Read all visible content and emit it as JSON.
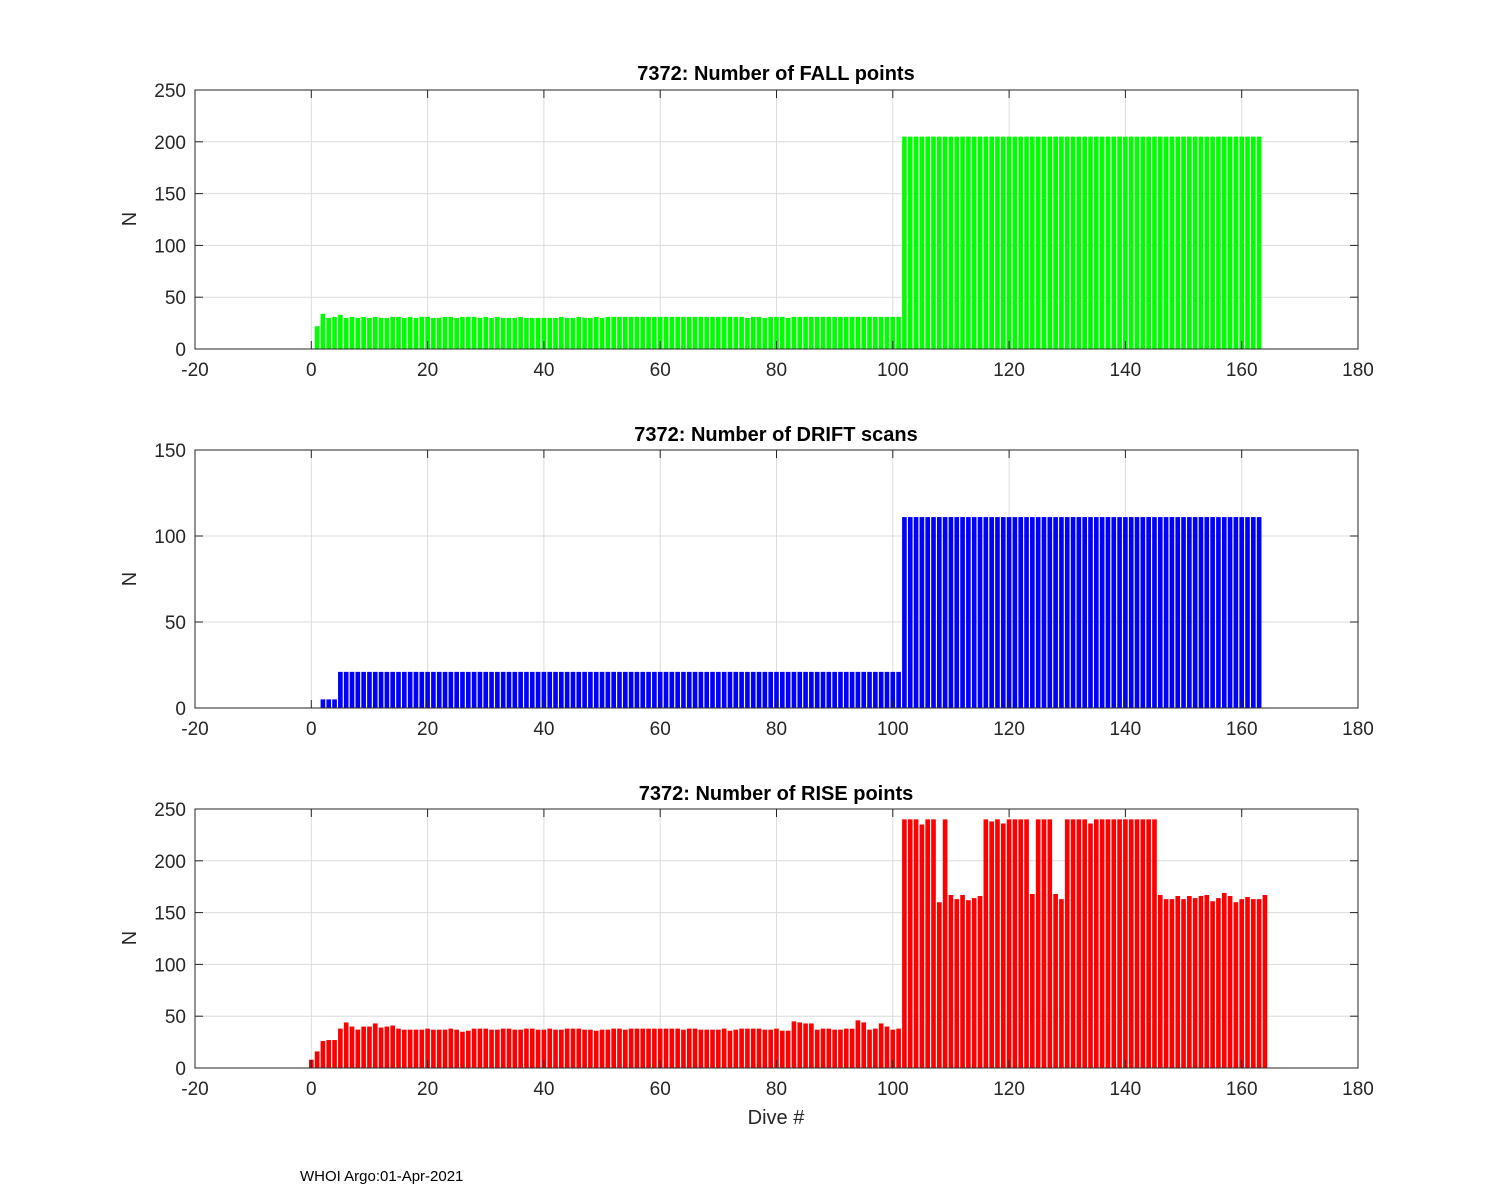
{
  "footer": "WHOI Argo:01-Apr-2021",
  "chart_data": [
    {
      "type": "bar",
      "title": "7372: Number of FALL points",
      "xlabel": "",
      "ylabel": "N",
      "xlim": [
        -20,
        180
      ],
      "ylim": [
        0,
        250
      ],
      "xticks": [
        -20,
        0,
        20,
        40,
        60,
        80,
        100,
        120,
        140,
        160,
        180
      ],
      "yticks": [
        0,
        50,
        100,
        150,
        200,
        250
      ],
      "color": "#00ff00",
      "x_start": 1,
      "values": [
        22,
        34,
        30,
        31,
        33,
        30,
        31,
        30,
        31,
        30,
        31,
        30,
        30,
        31,
        31,
        30,
        31,
        30,
        31,
        31,
        30,
        30,
        31,
        31,
        30,
        31,
        31,
        31,
        30,
        31,
        30,
        31,
        30,
        30,
        30,
        31,
        30,
        30,
        30,
        30,
        30,
        30,
        31,
        30,
        30,
        31,
        30,
        30,
        31,
        30,
        31,
        31,
        31,
        31,
        31,
        31,
        31,
        31,
        31,
        31,
        31,
        31,
        31,
        31,
        31,
        31,
        31,
        31,
        31,
        31,
        31,
        31,
        31,
        31,
        30,
        31,
        31,
        30,
        31,
        31,
        31,
        30,
        31,
        31,
        31,
        31,
        31,
        31,
        31,
        31,
        31,
        31,
        31,
        31,
        31,
        31,
        31,
        31,
        31,
        31,
        31,
        205,
        205,
        205,
        205,
        205,
        205,
        205,
        205,
        205,
        205,
        205,
        205,
        205,
        205,
        205,
        205,
        205,
        205,
        205,
        205,
        205,
        205,
        205,
        205,
        205,
        205,
        205,
        205,
        205,
        205,
        205,
        205,
        205,
        205,
        205,
        205,
        205,
        205,
        205,
        205,
        205,
        205,
        205,
        205,
        205,
        205,
        205,
        205,
        205,
        205,
        205,
        205,
        205,
        205,
        205,
        205,
        205,
        205,
        205,
        205,
        205,
        205
      ]
    },
    {
      "type": "bar",
      "title": "7372: Number of DRIFT scans",
      "xlabel": "",
      "ylabel": "N",
      "xlim": [
        -20,
        180
      ],
      "ylim": [
        0,
        150
      ],
      "xticks": [
        -20,
        0,
        20,
        40,
        60,
        80,
        100,
        120,
        140,
        160,
        180
      ],
      "yticks": [
        0,
        50,
        100,
        150
      ],
      "color": "#0000ff",
      "x_start": 1,
      "values": [
        0,
        5,
        5,
        5,
        21,
        21,
        21,
        21,
        21,
        21,
        21,
        21,
        21,
        21,
        21,
        21,
        21,
        21,
        21,
        21,
        21,
        21,
        21,
        21,
        21,
        21,
        21,
        21,
        21,
        21,
        21,
        21,
        21,
        21,
        21,
        21,
        21,
        21,
        21,
        21,
        21,
        21,
        21,
        21,
        21,
        21,
        21,
        21,
        21,
        21,
        21,
        21,
        21,
        21,
        21,
        21,
        21,
        21,
        21,
        21,
        21,
        21,
        21,
        21,
        21,
        21,
        21,
        21,
        21,
        21,
        21,
        21,
        21,
        21,
        21,
        21,
        21,
        21,
        21,
        21,
        21,
        21,
        21,
        21,
        21,
        21,
        21,
        21,
        21,
        21,
        21,
        21,
        21,
        21,
        21,
        21,
        21,
        21,
        21,
        21,
        21,
        111,
        111,
        111,
        111,
        111,
        111,
        111,
        111,
        111,
        111,
        111,
        111,
        111,
        111,
        111,
        111,
        111,
        111,
        111,
        111,
        111,
        111,
        111,
        111,
        111,
        111,
        111,
        111,
        111,
        111,
        111,
        111,
        111,
        111,
        111,
        111,
        111,
        111,
        111,
        111,
        111,
        111,
        111,
        111,
        111,
        111,
        111,
        111,
        111,
        111,
        111,
        111,
        111,
        111,
        111,
        111,
        111,
        111,
        111,
        111,
        111,
        111
      ]
    },
    {
      "type": "bar",
      "title": "7372: Number of RISE points",
      "xlabel": "Dive #",
      "ylabel": "N",
      "xlim": [
        -20,
        180
      ],
      "ylim": [
        0,
        250
      ],
      "xticks": [
        -20,
        0,
        20,
        40,
        60,
        80,
        100,
        120,
        140,
        160,
        180
      ],
      "yticks": [
        0,
        50,
        100,
        150,
        200,
        250
      ],
      "color": "#ff0000",
      "x_start": 0,
      "values": [
        8,
        16,
        26,
        27,
        27,
        38,
        44,
        40,
        37,
        40,
        40,
        43,
        39,
        40,
        41,
        38,
        37,
        37,
        37,
        37,
        38,
        37,
        37,
        37,
        38,
        37,
        35,
        36,
        38,
        38,
        38,
        37,
        37,
        38,
        38,
        37,
        37,
        38,
        38,
        37,
        37,
        38,
        37,
        37,
        38,
        38,
        38,
        37,
        37,
        36,
        37,
        37,
        38,
        38,
        37,
        38,
        38,
        38,
        38,
        38,
        38,
        38,
        38,
        38,
        37,
        38,
        38,
        37,
        37,
        37,
        37,
        38,
        36,
        37,
        38,
        38,
        38,
        38,
        37,
        37,
        38,
        36,
        36,
        45,
        44,
        43,
        43,
        37,
        38,
        38,
        37,
        37,
        38,
        38,
        46,
        44,
        37,
        38,
        43,
        40,
        37,
        38,
        240,
        240,
        240,
        235,
        240,
        240,
        160,
        240,
        167,
        163,
        167,
        162,
        164,
        166,
        240,
        238,
        240,
        236,
        240,
        240,
        240,
        240,
        168,
        240,
        240,
        240,
        168,
        163,
        240,
        240,
        240,
        240,
        236,
        240,
        240,
        240,
        240,
        240,
        240,
        240,
        240,
        240,
        240,
        240,
        167,
        163,
        163,
        166,
        163,
        166,
        164,
        166,
        167,
        161,
        164,
        169,
        166,
        160,
        163,
        165,
        163,
        163,
        167
      ]
    }
  ]
}
